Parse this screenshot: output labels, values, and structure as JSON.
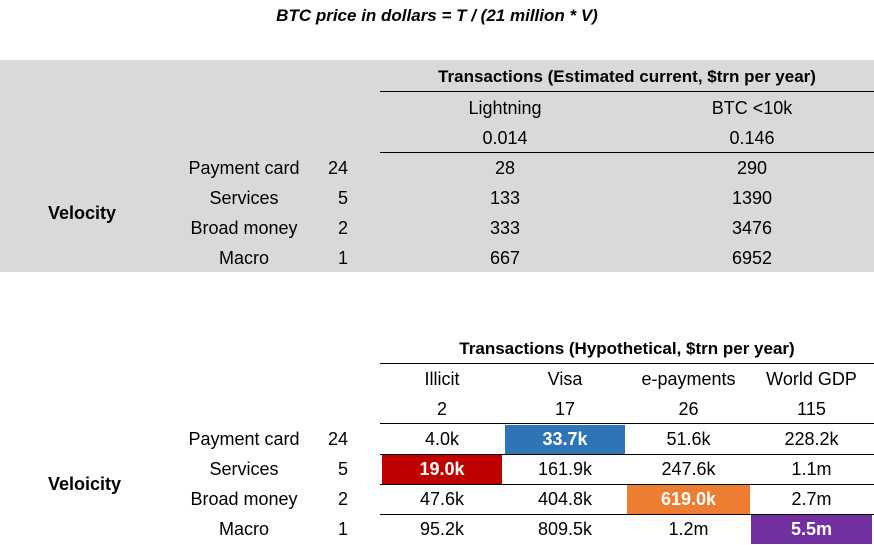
{
  "formula": "BTC price in dollars = T / (21 million * V)",
  "table1": {
    "header": "Transactions (Estimated current, $trn per year)",
    "velocity_label": "Velocity",
    "columns": [
      {
        "name": "Lightning",
        "value": "0.014"
      },
      {
        "name": "BTC <10k",
        "value": "0.146"
      }
    ],
    "rows": [
      {
        "label": "Payment card",
        "velocity": "24",
        "cells": [
          "28",
          "290"
        ]
      },
      {
        "label": "Services",
        "velocity": "5",
        "cells": [
          "133",
          "1390"
        ]
      },
      {
        "label": "Broad money",
        "velocity": "2",
        "cells": [
          "333",
          "3476"
        ]
      },
      {
        "label": "Macro",
        "velocity": "1",
        "cells": [
          "667",
          "6952"
        ]
      }
    ]
  },
  "table2": {
    "header": "Transactions (Hypothetical, $trn per year)",
    "velocity_label": "Veloicity",
    "columns": [
      {
        "name": "Illicit",
        "value": "2"
      },
      {
        "name": "Visa",
        "value": "17"
      },
      {
        "name": "e-payments",
        "value": "26"
      },
      {
        "name": "World GDP",
        "value": "115"
      }
    ],
    "rows": [
      {
        "label": "Payment card",
        "velocity": "24",
        "cells": [
          "4.0k",
          "33.7k",
          "51.6k",
          "228.2k"
        ]
      },
      {
        "label": "Services",
        "velocity": "5",
        "cells": [
          "19.0k",
          "161.9k",
          "247.6k",
          "1.1m"
        ]
      },
      {
        "label": "Broad money",
        "velocity": "2",
        "cells": [
          "47.6k",
          "404.8k",
          "619.0k",
          "2.7m"
        ]
      },
      {
        "label": "Macro",
        "velocity": "1",
        "cells": [
          "95.2k",
          "809.5k",
          "1.2m",
          "5.5m"
        ]
      }
    ],
    "highlight_colors": {
      "services_illicit": "#c00000",
      "payment_card_visa": "#2e75b6",
      "broad_money_epayments": "#ed7d31",
      "macro_world_gdp": "#7030a0"
    }
  }
}
